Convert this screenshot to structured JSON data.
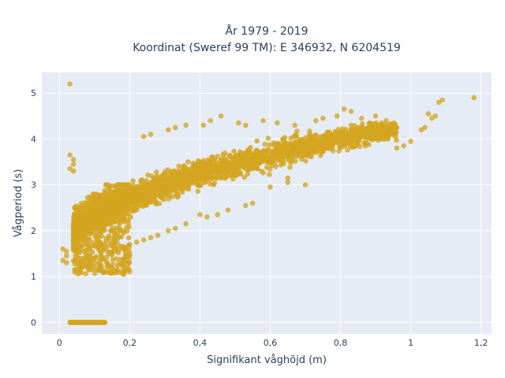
{
  "chart_data": {
    "type": "scatter",
    "title": "År 1979 - 2019",
    "subtitle": "Koordinat (Sweref 99 TM): E 346932, N 6204519",
    "xlabel": "Signifikant våghöjd (m)",
    "ylabel": "Vågperiod (s)",
    "xlim": [
      -0.05,
      1.23
    ],
    "ylim": [
      -0.25,
      5.45
    ],
    "xticks": [
      0,
      0.2,
      0.4,
      0.6,
      0.8,
      1,
      1.2
    ],
    "xtick_labels": [
      "0",
      "0,2",
      "0,4",
      "0,6",
      "0,8",
      "1",
      "1,2"
    ],
    "yticks": [
      0,
      1,
      2,
      3,
      4,
      5
    ],
    "ytick_labels": [
      "0",
      "1",
      "2",
      "3",
      "4",
      "5"
    ],
    "grid": true,
    "marker_color": "#d4a520",
    "plot_bgcolor": "#e5ecf6",
    "series": [
      {
        "points": [
          [
            0.03,
            5.2
          ],
          [
            0.03,
            3.65
          ],
          [
            0.03,
            3.35
          ],
          [
            0.04,
            3.3
          ],
          [
            0.04,
            3.45
          ],
          [
            0.04,
            3.55
          ],
          [
            0.01,
            1.6
          ],
          [
            0.02,
            1.55
          ],
          [
            0.02,
            1.45
          ],
          [
            0.01,
            1.35
          ],
          [
            0.02,
            1.3
          ],
          [
            1.18,
            4.9
          ],
          [
            1.09,
            4.85
          ],
          [
            1.08,
            4.8
          ],
          [
            1.05,
            4.55
          ],
          [
            1.07,
            4.5
          ],
          [
            1.06,
            4.45
          ],
          [
            1.03,
            4.2
          ],
          [
            1.04,
            4.25
          ],
          [
            1.0,
            3.95
          ],
          [
            0.98,
            3.85
          ],
          [
            0.96,
            3.8
          ],
          [
            0.95,
            4.3
          ],
          [
            0.96,
            4.25
          ],
          [
            0.93,
            4.4
          ],
          [
            0.9,
            4.5
          ],
          [
            0.86,
            4.45
          ],
          [
            0.83,
            4.6
          ],
          [
            0.81,
            4.65
          ],
          [
            0.79,
            4.5
          ],
          [
            0.75,
            4.45
          ],
          [
            0.73,
            4.4
          ],
          [
            0.67,
            4.3
          ],
          [
            0.62,
            4.35
          ],
          [
            0.58,
            4.4
          ],
          [
            0.53,
            4.3
          ],
          [
            0.51,
            4.35
          ],
          [
            0.46,
            4.5
          ],
          [
            0.43,
            4.4
          ],
          [
            0.41,
            4.3
          ],
          [
            0.36,
            4.3
          ],
          [
            0.33,
            4.25
          ],
          [
            0.31,
            4.2
          ],
          [
            0.24,
            4.05
          ],
          [
            0.26,
            4.1
          ],
          [
            0.65,
            3.15
          ],
          [
            0.65,
            3.05
          ],
          [
            0.7,
            3.0
          ],
          [
            0.6,
            2.95
          ],
          [
            0.55,
            2.6
          ],
          [
            0.53,
            2.55
          ],
          [
            0.48,
            2.45
          ],
          [
            0.45,
            2.35
          ],
          [
            0.42,
            2.3
          ],
          [
            0.4,
            2.35
          ],
          [
            0.36,
            2.15
          ],
          [
            0.33,
            2.05
          ],
          [
            0.31,
            2.0
          ],
          [
            0.28,
            1.9
          ],
          [
            0.26,
            1.85
          ],
          [
            0.24,
            1.8
          ],
          [
            0.22,
            1.75
          ],
          [
            0.2,
            1.7
          ],
          [
            0.18,
            1.65
          ],
          [
            0.16,
            1.6
          ],
          [
            0.14,
            1.5
          ],
          [
            0.12,
            1.4
          ],
          [
            0.1,
            1.3
          ],
          [
            0.08,
            1.2
          ],
          [
            0.06,
            1.1
          ],
          [
            0.05,
            2.0
          ],
          [
            0.05,
            2.2
          ],
          [
            0.06,
            2.4
          ],
          [
            0.07,
            2.5
          ],
          [
            0.08,
            2.6
          ],
          [
            0.05,
            1.5
          ],
          [
            0.04,
            1.6
          ],
          [
            0.05,
            1.75
          ],
          [
            0.05,
            1.9
          ]
        ]
      }
    ],
    "notes": "Dense cloud of ~hundreds of thousands of points spanning x≈0.03–1.18 m, y≈1.0–4.9 s; plus a horizontal band of points at y=0 for x≈0.03–0.13."
  }
}
